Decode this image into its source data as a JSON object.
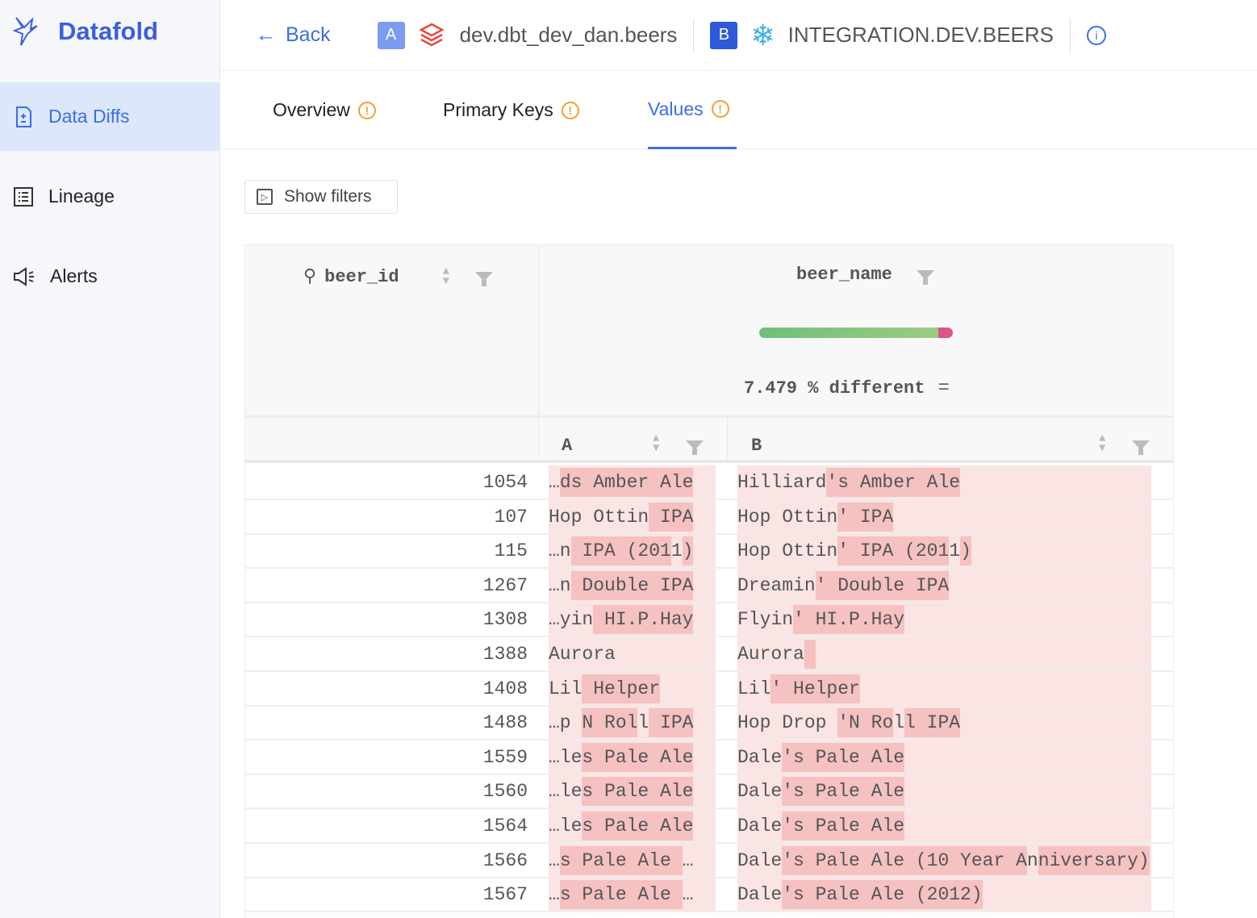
{
  "app": {
    "name": "Datafold",
    "accent": "#3b6ee8"
  },
  "sidebar": {
    "items": [
      {
        "label": "Data Diffs",
        "icon": "document-diff-icon",
        "active": true
      },
      {
        "label": "Lineage",
        "icon": "list-icon"
      },
      {
        "label": "Alerts",
        "icon": "megaphone-icon"
      }
    ]
  },
  "header": {
    "back_label": "Back",
    "a_badge": "A",
    "a_table": "dev.dbt_dev_dan.beers",
    "a_source_icon": "databricks-icon",
    "b_badge": "B",
    "b_table": "INTEGRATION.DEV.BEERS",
    "b_source_icon": "snowflake-icon",
    "info_icon": "info-icon"
  },
  "tabs": [
    {
      "label": "Overview",
      "warning": true
    },
    {
      "label": "Primary Keys",
      "warning": true
    },
    {
      "label": "Values",
      "warning": true,
      "active": true
    }
  ],
  "filters": {
    "label": "Show filters"
  },
  "table": {
    "key_column": "beer_id",
    "value_column": "beer_name",
    "diff_percent": 7.479,
    "diff_label": "7.479 % different",
    "diff_colors": {
      "match": "#7cc47f",
      "different": "#d9558a"
    },
    "sub_a": "A",
    "sub_b": "B",
    "rows": [
      {
        "id": "1054",
        "a": [
          [
            "…",
            0
          ],
          [
            "ds Amber Ale",
            1
          ]
        ],
        "b": [
          [
            "Hilliard",
            0
          ],
          [
            "'s Amber Ale",
            1
          ]
        ]
      },
      {
        "id": "107",
        "a": [
          [
            "Hop Ottin",
            0
          ],
          [
            " IPA",
            1
          ]
        ],
        "b": [
          [
            "Hop Ottin",
            0
          ],
          [
            "' IPA",
            1
          ]
        ]
      },
      {
        "id": "115",
        "a": [
          [
            "…n",
            0
          ],
          [
            " IPA (201",
            1
          ],
          [
            "1",
            0
          ],
          [
            ")",
            1
          ]
        ],
        "b": [
          [
            "Hop Ottin",
            0
          ],
          [
            "' IPA (201",
            1
          ],
          [
            "1",
            0
          ],
          [
            ")",
            1
          ]
        ]
      },
      {
        "id": "1267",
        "a": [
          [
            "…n",
            0
          ],
          [
            " Double IPA",
            1
          ]
        ],
        "b": [
          [
            "Dreamin",
            0
          ],
          [
            "' Double IPA",
            1
          ]
        ]
      },
      {
        "id": "1308",
        "a": [
          [
            "…yin",
            0
          ],
          [
            " HI.P.Hay",
            1
          ]
        ],
        "b": [
          [
            "Flyin",
            0
          ],
          [
            "' HI.P.Hay",
            1
          ]
        ]
      },
      {
        "id": "1388",
        "a": [
          [
            "Aurora",
            0
          ]
        ],
        "b": [
          [
            "Aurora",
            0
          ],
          [
            " ",
            1
          ]
        ]
      },
      {
        "id": "1408",
        "a": [
          [
            "Lil",
            0
          ],
          [
            " Helper",
            1
          ]
        ],
        "b": [
          [
            "Lil",
            0
          ],
          [
            "' Helper",
            1
          ]
        ]
      },
      {
        "id": "1488",
        "a": [
          [
            "…p ",
            0
          ],
          [
            "N Rol",
            1
          ],
          [
            "l",
            0
          ],
          [
            " IPA",
            1
          ]
        ],
        "b": [
          [
            "Hop Drop ",
            0
          ],
          [
            "'N Ro",
            1
          ],
          [
            "l",
            0
          ],
          [
            "l IPA",
            1
          ]
        ]
      },
      {
        "id": "1559",
        "a": [
          [
            "…le",
            0
          ],
          [
            "s Pale Ale",
            1
          ]
        ],
        "b": [
          [
            "Dale",
            0
          ],
          [
            "'s Pale Ale",
            1
          ]
        ]
      },
      {
        "id": "1560",
        "a": [
          [
            "…le",
            0
          ],
          [
            "s Pale Ale",
            1
          ]
        ],
        "b": [
          [
            "Dale",
            0
          ],
          [
            "'s Pale Ale",
            1
          ]
        ]
      },
      {
        "id": "1564",
        "a": [
          [
            "…le",
            0
          ],
          [
            "s Pale Ale",
            1
          ]
        ],
        "b": [
          [
            "Dale",
            0
          ],
          [
            "'s Pale Ale",
            1
          ]
        ]
      },
      {
        "id": "1566",
        "a": [
          [
            "…",
            0
          ],
          [
            "s Pale Ale ",
            1
          ],
          [
            "…",
            0
          ]
        ],
        "b": [
          [
            "Dale",
            0
          ],
          [
            "'s Pale Ale (10 Year A",
            1
          ],
          [
            "n",
            0
          ],
          [
            "niversary)",
            1
          ]
        ]
      },
      {
        "id": "1567",
        "a": [
          [
            "…",
            0
          ],
          [
            "s Pale Ale ",
            1
          ],
          [
            "…",
            0
          ]
        ],
        "b": [
          [
            "Dale",
            0
          ],
          [
            "'s Pale Ale (2012)",
            1
          ]
        ]
      }
    ]
  }
}
